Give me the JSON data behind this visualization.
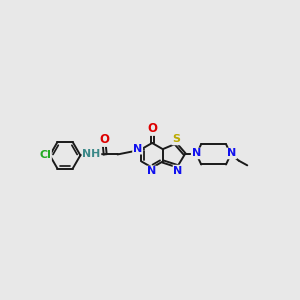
{
  "fig_bg": "#e8e8e8",
  "bond_color": "#1a1a1a",
  "bond_lw": 1.4,
  "atom_colors": {
    "N": "#1010ee",
    "O": "#dd0000",
    "S": "#bbaa00",
    "Cl": "#22aa22",
    "NH": "#3a8888",
    "H": "#3a8888"
  },
  "fs": 7.5,
  "xlim": [
    -1.5,
    12.5
  ],
  "ylim": [
    2.5,
    8.0
  ]
}
